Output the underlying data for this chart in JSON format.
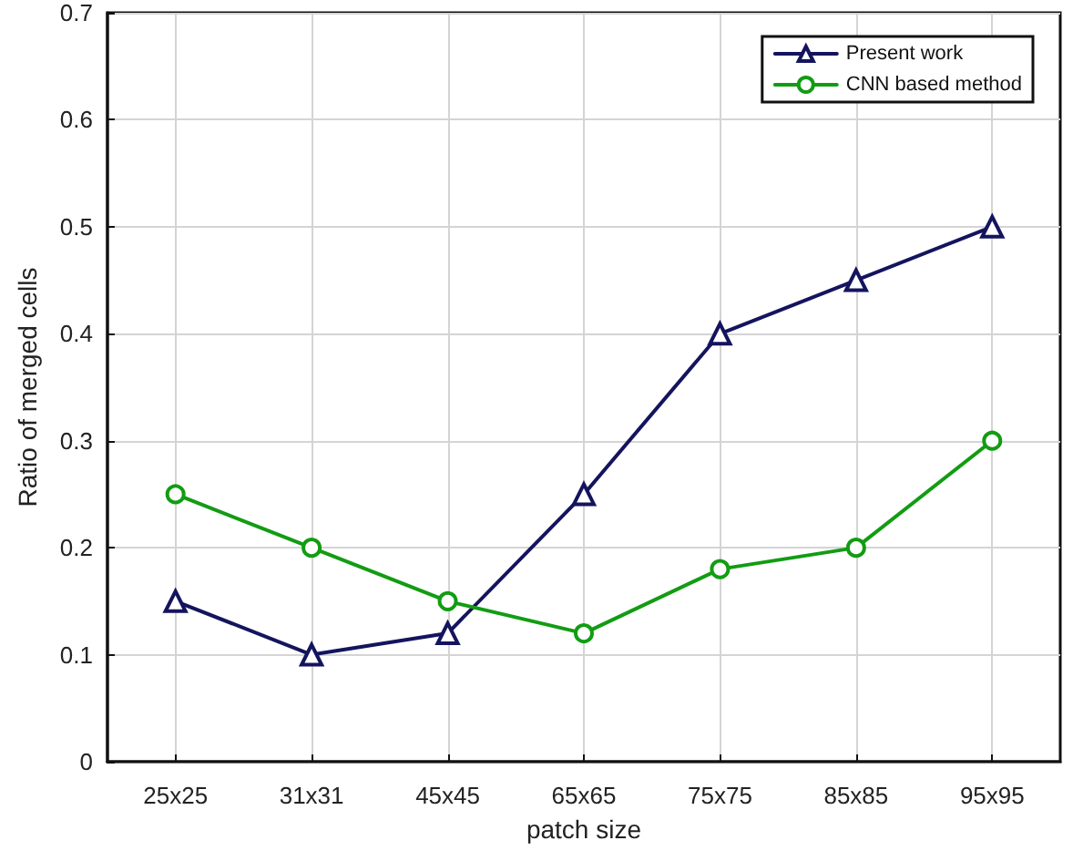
{
  "chart_data": {
    "type": "line",
    "xlabel": "patch size",
    "ylabel": "Ratio of merged cells",
    "categories": [
      "25x25",
      "31x31",
      "45x45",
      "65x65",
      "75x75",
      "85x85",
      "95x95"
    ],
    "series": [
      {
        "name": "Present work",
        "color": "#14145e",
        "marker": "triangle",
        "values": [
          0.15,
          0.1,
          0.12,
          0.25,
          0.4,
          0.45,
          0.5
        ]
      },
      {
        "name": "CNN based method",
        "color": "#129c12",
        "marker": "circle",
        "values": [
          0.25,
          0.2,
          0.15,
          0.12,
          0.18,
          0.2,
          0.3
        ]
      }
    ],
    "ylim": [
      0,
      0.7
    ],
    "yticks": [
      0,
      0.1,
      0.2,
      0.3,
      0.4,
      0.5,
      0.6,
      0.7
    ],
    "grid": true,
    "legend": "top right",
    "line_style": "solid"
  }
}
